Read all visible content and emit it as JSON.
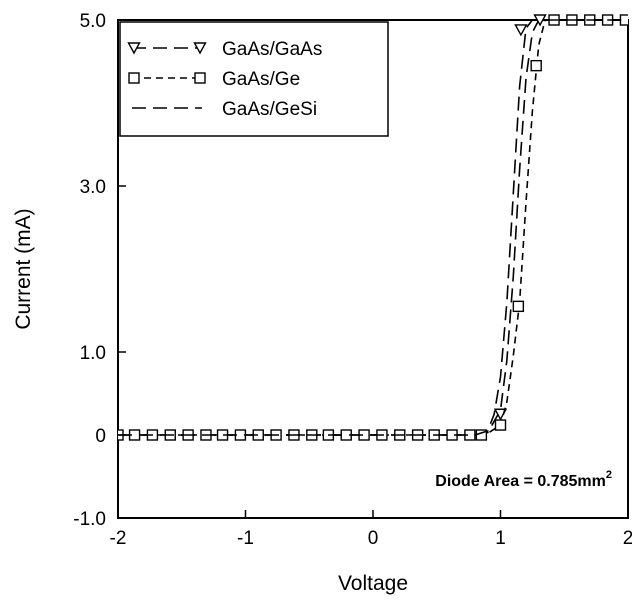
{
  "chart_data": {
    "type": "line",
    "title": "",
    "xlabel": "Voltage",
    "ylabel": "Current (mA)",
    "xlim": [
      -2,
      2
    ],
    "ylim": [
      -1,
      5
    ],
    "x_ticks": [
      -2,
      -1,
      0,
      1,
      2
    ],
    "x_tick_labels": [
      "-2",
      "-1",
      "0",
      "1",
      "2"
    ],
    "y_ticks": [
      -1,
      0,
      1,
      3,
      5
    ],
    "y_tick_labels": [
      "-1.0",
      "0",
      "1.0",
      "3.0",
      "5.0"
    ],
    "grid": false,
    "legend_position": "top-left",
    "annotation": {
      "text": "Diode Area = 0.785mm",
      "superscript": "2"
    },
    "series": [
      {
        "name": "GaAs/GaAs",
        "marker": "triangle-down",
        "dash": "long-dash",
        "x": [
          -2,
          -1.8,
          -1.6,
          -1.4,
          -1.2,
          -1.0,
          -0.8,
          -0.6,
          -0.4,
          -0.2,
          0,
          0.2,
          0.4,
          0.6,
          0.8,
          0.9,
          1.0,
          1.05,
          1.1,
          1.15,
          1.2,
          1.25,
          1.3,
          1.4,
          1.6,
          1.8,
          2.0
        ],
        "y": [
          0,
          0,
          0,
          0,
          0,
          0,
          0,
          0,
          0,
          0,
          0,
          0,
          0,
          0,
          0,
          0.03,
          0.3,
          0.9,
          1.9,
          3.2,
          4.3,
          4.85,
          5.0,
          5.0,
          5.0,
          5.0,
          5.0
        ],
        "marker_x": [
          1.0,
          1.16,
          1.31
        ],
        "marker_y": [
          0.25,
          4.88,
          5.0
        ]
      },
      {
        "name": "GaAs/Ge",
        "marker": "square",
        "dash": "short-dash",
        "x": [
          -2,
          -1.8,
          -1.6,
          -1.4,
          -1.2,
          -1.0,
          -0.8,
          -0.6,
          -0.4,
          -0.2,
          0,
          0.2,
          0.4,
          0.6,
          0.8,
          0.9,
          1.0,
          1.05,
          1.1,
          1.15,
          1.2,
          1.25,
          1.3,
          1.35,
          1.4,
          1.6,
          1.8,
          2.0
        ],
        "y": [
          0,
          0,
          0,
          0,
          0,
          0,
          0,
          0,
          0,
          0,
          0,
          0,
          0,
          0,
          0,
          0.02,
          0.12,
          0.4,
          0.95,
          1.6,
          2.8,
          3.9,
          4.7,
          5.0,
          5.0,
          5.0,
          5.0,
          5.0
        ],
        "marker_x": [
          -2.0,
          -1.87,
          -1.73,
          -1.59,
          -1.45,
          -1.31,
          -1.18,
          -1.04,
          -0.9,
          -0.76,
          -0.62,
          -0.48,
          -0.35,
          -0.21,
          -0.07,
          0.07,
          0.21,
          0.35,
          0.48,
          0.62,
          0.76,
          0.85,
          1.0,
          1.14,
          1.28,
          1.42,
          1.56,
          1.7,
          1.84,
          1.98
        ],
        "marker_y": [
          0,
          0,
          0,
          0,
          0,
          0,
          0,
          0,
          0,
          0,
          0,
          0,
          0,
          0,
          0,
          0,
          0,
          0,
          0,
          0,
          0,
          0,
          0.12,
          1.55,
          4.45,
          5.0,
          5.0,
          5.0,
          5.0,
          5.0
        ]
      },
      {
        "name": "GaAs/GeSi",
        "marker": "none",
        "dash": "long-dash",
        "x": [
          -2,
          -1.5,
          -1.0,
          -0.5,
          0,
          0.5,
          0.8,
          0.9,
          0.95,
          1.0,
          1.05,
          1.1,
          1.15,
          1.2,
          1.25,
          1.3,
          1.5,
          2.0
        ],
        "y": [
          0,
          0,
          0,
          0,
          0,
          0,
          0,
          0.05,
          0.25,
          0.7,
          1.6,
          2.9,
          4.2,
          4.9,
          5.0,
          5.0,
          5.0,
          5.0
        ]
      }
    ]
  }
}
